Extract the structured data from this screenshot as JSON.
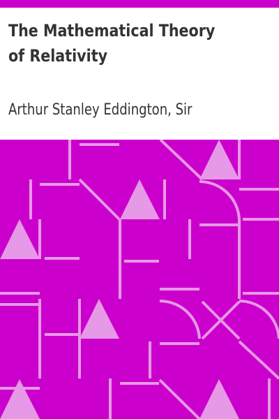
{
  "book": {
    "title": "The Mathematical Theory of Relativity",
    "author": "Arthur Stanley Eddington, Sir"
  },
  "colors": {
    "accent": "#cc00cc",
    "pattern_line": "#e699e6",
    "text": "#333333",
    "background": "#ffffff"
  }
}
